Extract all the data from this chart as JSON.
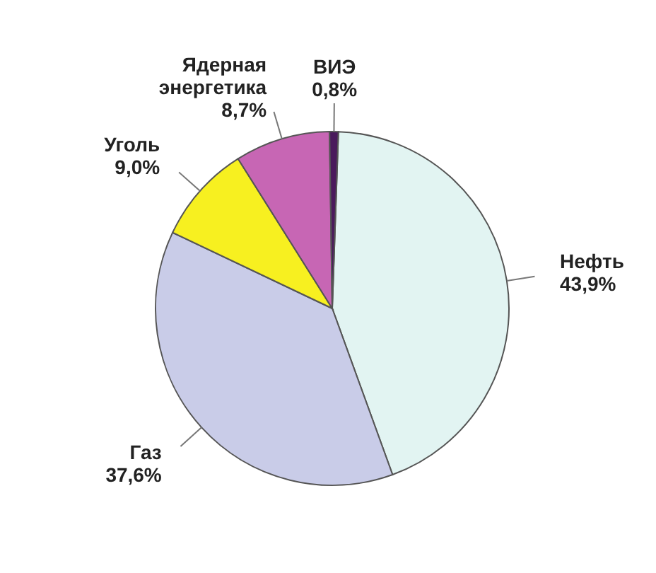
{
  "chart_data": {
    "type": "pie",
    "categories": [
      "Нефть",
      "Газ",
      "Уголь",
      "Ядерная энергетика",
      "ВИЭ"
    ],
    "values": [
      43.9,
      37.6,
      9.0,
      8.7,
      0.8
    ],
    "colors": [
      "#e2f4f2",
      "#c9cce8",
      "#f7f020",
      "#c766b4",
      "#4a1a5c"
    ],
    "value_labels": [
      "43,9%",
      "37,6%",
      "9,0%",
      "8,7%",
      "0,8%"
    ]
  }
}
